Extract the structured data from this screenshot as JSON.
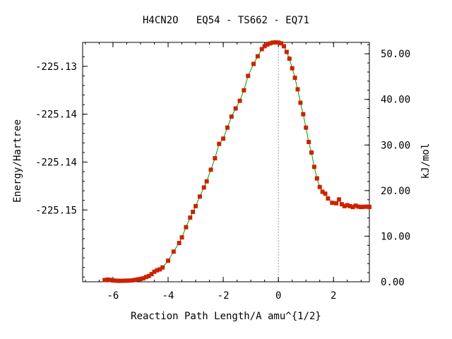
{
  "chart_data": {
    "type": "line",
    "title": "H4CN2O   EQ54 - TS662 - EQ71",
    "xlabel": "Reaction Path Length/A amu^{1/2}",
    "ylabel": "Energy/Hartree",
    "y2label": "kJ/mol",
    "xlim": [
      -7.1,
      3.3
    ],
    "ylim": [
      -225.1525,
      -225.1275
    ],
    "y2lim": [
      0,
      52.5
    ],
    "x_ticks": [
      -6,
      -4,
      -2,
      0,
      2
    ],
    "y_ticks": [
      -225.13,
      -225.135,
      -225.14,
      -225.145
    ],
    "y_tick_labels": [
      "-225.13",
      "-225.14",
      "-225.14",
      "-225.15"
    ],
    "y2_ticks": [
      0,
      10,
      20,
      30,
      40,
      50
    ],
    "y2_tick_labels": [
      "0.00",
      "10.00",
      "20.00",
      "30.00",
      "40.00",
      "50.00"
    ],
    "ts_marker_x": 0,
    "line_color": "#00a000",
    "marker_color": "#cc2200",
    "series": [
      {
        "x": [
          -6.3,
          -6.2,
          -6.1,
          -6.0,
          -5.9,
          -5.8,
          -5.7,
          -5.6,
          -5.5,
          -5.4,
          -5.3,
          -5.2,
          -5.1,
          -5.0,
          -4.9,
          -4.8,
          -4.7,
          -4.6,
          -4.5,
          -4.4,
          -4.3,
          -4.2,
          -4.0,
          -3.8,
          -3.6,
          -3.5,
          -3.35,
          -3.2,
          -3.1,
          -3.0,
          -2.85,
          -2.7,
          -2.6,
          -2.45,
          -2.3,
          -2.15,
          -2.0,
          -1.85,
          -1.7,
          -1.55,
          -1.4,
          -1.25,
          -1.1,
          -0.9,
          -0.75,
          -0.6,
          -0.5,
          -0.4,
          -0.3,
          -0.2,
          -0.1,
          0.0,
          0.1,
          0.2,
          0.3,
          0.4,
          0.5,
          0.6,
          0.7,
          0.8,
          0.9,
          1.0,
          1.1,
          1.2,
          1.3,
          1.4,
          1.5,
          1.6,
          1.7,
          1.8,
          1.95,
          2.1,
          2.2,
          2.3,
          2.4,
          2.5,
          2.6,
          2.7,
          2.8,
          2.9,
          3.0,
          3.1,
          3.2,
          3.3
        ],
        "values": [
          -225.15232,
          -225.15227,
          -225.1523,
          -225.15236,
          -225.15238,
          -225.1524,
          -225.1524,
          -225.15239,
          -225.15238,
          -225.15237,
          -225.15235,
          -225.1523,
          -225.15225,
          -225.1522,
          -225.15214,
          -225.152,
          -225.1519,
          -225.1517,
          -225.15145,
          -225.1513,
          -225.1512,
          -225.151,
          -225.1503,
          -225.14935,
          -225.14845,
          -225.14786,
          -225.1468,
          -225.1458,
          -225.1452,
          -225.1446,
          -225.1436,
          -225.14265,
          -225.14201,
          -225.1408,
          -225.1396,
          -225.1381,
          -225.13755,
          -225.1364,
          -225.13525,
          -225.1344,
          -225.1336,
          -225.1325,
          -225.131,
          -225.12975,
          -225.12895,
          -225.1282,
          -225.1279,
          -225.12773,
          -225.1276,
          -225.12752,
          -225.1275,
          -225.12752,
          -225.1276,
          -225.1279,
          -225.1285,
          -225.1292,
          -225.1302,
          -225.1312,
          -225.1324,
          -225.1338,
          -225.135,
          -225.1364,
          -225.1379,
          -225.139,
          -225.1405,
          -225.1417,
          -225.1426,
          -225.1431,
          -225.1433,
          -225.1438,
          -225.14425,
          -225.1443,
          -225.1439,
          -225.1444,
          -225.1446,
          -225.1445,
          -225.1446,
          -225.1447,
          -225.14455,
          -225.14465,
          -225.1447,
          -225.14467,
          -225.14465,
          -225.14468
        ]
      }
    ]
  }
}
